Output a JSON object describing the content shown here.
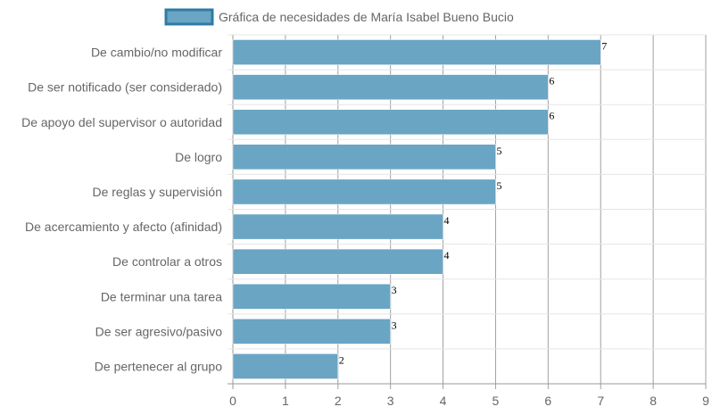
{
  "chart_data": {
    "type": "bar",
    "orientation": "horizontal",
    "categories": [
      "De cambio/no modificar",
      "De ser notificado (ser considerado)",
      "De apoyo del supervisor o autoridad",
      "De logro",
      "De reglas y supervisión",
      "De acercamiento y afecto (afinidad)",
      "De controlar a otros",
      "De terminar una tarea",
      "De ser agresivo/pasivo",
      "De pertenecer al grupo"
    ],
    "series": [
      {
        "name": "Gráfica de necesidades de María Isabel Bueno Bucio",
        "values": [
          7,
          6,
          6,
          5,
          5,
          4,
          4,
          3,
          3,
          2
        ],
        "color": "#6aa5c4",
        "border_color": "#2d7ca5"
      }
    ],
    "x_ticks": [
      0,
      1,
      2,
      3,
      4,
      5,
      6,
      7,
      8,
      9
    ],
    "xlim": [
      0,
      9
    ],
    "grid": true,
    "legend_position": "top",
    "data_labels": true
  }
}
